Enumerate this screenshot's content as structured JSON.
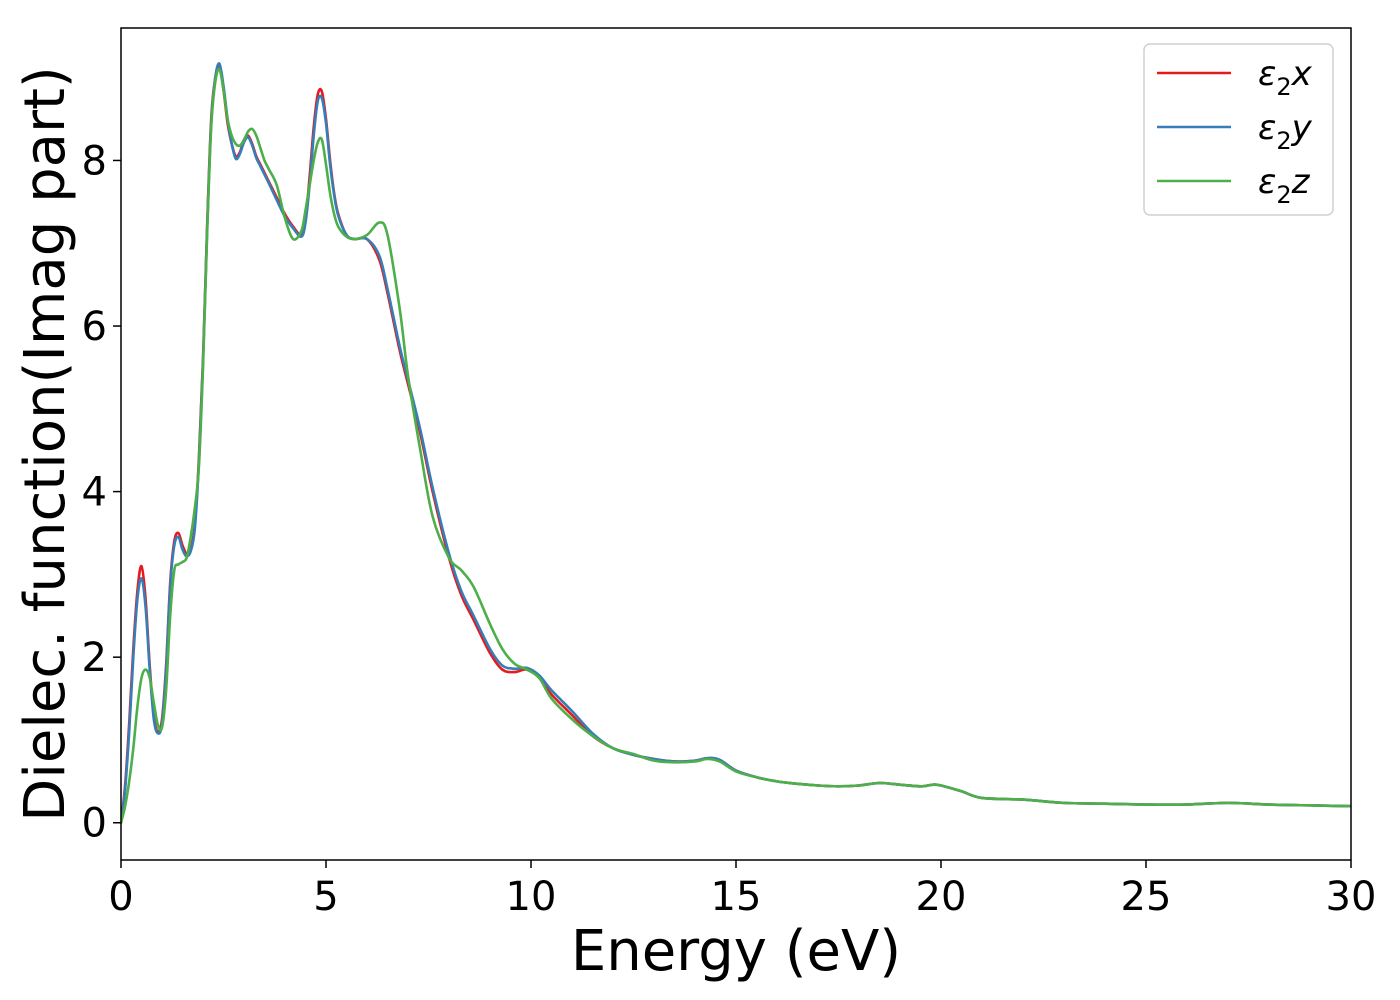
{
  "chart_data": {
    "type": "line",
    "title": "",
    "xlabel": "Energy (eV)",
    "ylabel": "Dielec. function(Imag part)",
    "xlim": [
      0,
      30
    ],
    "ylim": [
      -0.45,
      9.6
    ],
    "xticks": [
      0,
      5,
      10,
      15,
      20,
      25,
      30
    ],
    "yticks": [
      0,
      2,
      4,
      6,
      8
    ],
    "grid": false,
    "legend_position": "top-right",
    "series": [
      {
        "name": "ε2x",
        "legend": {
          "base": "ε",
          "sub": "2",
          "var": "x"
        },
        "color": "#e41a1c",
        "x": [
          0,
          0.1,
          0.2,
          0.3,
          0.4,
          0.5,
          0.6,
          0.7,
          0.8,
          0.9,
          1.0,
          1.1,
          1.2,
          1.3,
          1.4,
          1.5,
          1.6,
          1.7,
          1.8,
          1.9,
          2.0,
          2.1,
          2.2,
          2.3,
          2.4,
          2.5,
          2.6,
          2.7,
          2.8,
          2.9,
          3.0,
          3.1,
          3.2,
          3.3,
          3.4,
          3.5,
          3.6,
          3.8,
          4.0,
          4.2,
          4.4,
          4.5,
          4.6,
          4.7,
          4.8,
          4.9,
          5.0,
          5.1,
          5.2,
          5.3,
          5.5,
          5.7,
          6.0,
          6.3,
          6.5,
          6.8,
          7.0,
          7.3,
          7.6,
          8.0,
          8.3,
          8.6,
          9.0,
          9.3,
          9.6,
          9.9,
          10.2,
          10.5,
          11.0,
          11.5,
          12.0,
          12.5,
          13.0,
          13.5,
          14.0,
          14.3,
          14.6,
          15.0,
          15.5,
          16.0,
          16.5,
          17.0,
          17.5,
          18.0,
          18.5,
          19.0,
          19.5,
          19.8,
          20.0,
          20.5,
          21.0,
          22.0,
          23.0,
          24.0,
          25.0,
          26.0,
          27.0,
          28.0,
          29.0,
          30.0
        ],
        "y": [
          0.0,
          0.45,
          1.2,
          2.1,
          2.8,
          3.1,
          2.7,
          1.9,
          1.3,
          1.1,
          1.25,
          1.9,
          2.9,
          3.4,
          3.5,
          3.35,
          3.25,
          3.3,
          3.6,
          4.4,
          5.6,
          7.2,
          8.5,
          9.0,
          9.15,
          8.85,
          8.45,
          8.2,
          8.05,
          8.1,
          8.25,
          8.3,
          8.2,
          8.05,
          7.95,
          7.85,
          7.75,
          7.55,
          7.35,
          7.2,
          7.1,
          7.3,
          7.8,
          8.4,
          8.8,
          8.83,
          8.5,
          8.0,
          7.6,
          7.35,
          7.1,
          7.05,
          7.05,
          6.8,
          6.4,
          5.7,
          5.3,
          4.7,
          4.0,
          3.2,
          2.75,
          2.45,
          2.05,
          1.85,
          1.82,
          1.85,
          1.75,
          1.55,
          1.3,
          1.05,
          0.9,
          0.82,
          0.77,
          0.74,
          0.75,
          0.78,
          0.76,
          0.63,
          0.55,
          0.5,
          0.47,
          0.45,
          0.44,
          0.45,
          0.48,
          0.46,
          0.44,
          0.46,
          0.45,
          0.38,
          0.3,
          0.28,
          0.24,
          0.23,
          0.22,
          0.22,
          0.24,
          0.22,
          0.21,
          0.2
        ]
      },
      {
        "name": "ε2y",
        "legend": {
          "base": "ε",
          "sub": "2",
          "var": "y"
        },
        "color": "#377eb8",
        "x": [
          0,
          0.1,
          0.2,
          0.3,
          0.4,
          0.5,
          0.6,
          0.7,
          0.8,
          0.9,
          1.0,
          1.1,
          1.2,
          1.3,
          1.4,
          1.5,
          1.6,
          1.7,
          1.8,
          1.9,
          2.0,
          2.1,
          2.2,
          2.3,
          2.4,
          2.5,
          2.6,
          2.7,
          2.8,
          2.9,
          3.0,
          3.1,
          3.2,
          3.3,
          3.4,
          3.5,
          3.6,
          3.8,
          4.0,
          4.2,
          4.4,
          4.5,
          4.6,
          4.7,
          4.8,
          4.9,
          5.0,
          5.1,
          5.2,
          5.3,
          5.5,
          5.7,
          6.0,
          6.3,
          6.5,
          6.8,
          7.0,
          7.3,
          7.6,
          8.0,
          8.3,
          8.6,
          9.0,
          9.3,
          9.6,
          9.9,
          10.2,
          10.5,
          11.0,
          11.5,
          12.0,
          12.5,
          13.0,
          13.5,
          14.0,
          14.3,
          14.6,
          15.0,
          15.5,
          16.0,
          16.5,
          17.0,
          17.5,
          18.0,
          18.5,
          19.0,
          19.5,
          19.8,
          20.0,
          20.5,
          21.0,
          22.0,
          23.0,
          24.0,
          25.0,
          26.0,
          27.0,
          28.0,
          29.0,
          30.0
        ],
        "y": [
          0.0,
          0.4,
          1.1,
          2.0,
          2.7,
          2.95,
          2.6,
          1.85,
          1.25,
          1.08,
          1.2,
          1.85,
          2.85,
          3.35,
          3.45,
          3.3,
          3.22,
          3.28,
          3.55,
          4.35,
          5.55,
          7.15,
          8.45,
          9.0,
          9.17,
          8.9,
          8.5,
          8.2,
          8.02,
          8.08,
          8.22,
          8.28,
          8.18,
          8.03,
          7.93,
          7.83,
          7.73,
          7.52,
          7.32,
          7.18,
          7.08,
          7.25,
          7.7,
          8.3,
          8.72,
          8.75,
          8.45,
          7.95,
          7.58,
          7.33,
          7.1,
          7.05,
          7.05,
          6.85,
          6.45,
          5.75,
          5.35,
          4.75,
          4.05,
          3.25,
          2.8,
          2.5,
          2.1,
          1.9,
          1.86,
          1.87,
          1.78,
          1.6,
          1.35,
          1.08,
          0.9,
          0.82,
          0.77,
          0.74,
          0.75,
          0.78,
          0.76,
          0.63,
          0.55,
          0.5,
          0.47,
          0.45,
          0.44,
          0.45,
          0.48,
          0.46,
          0.44,
          0.46,
          0.45,
          0.38,
          0.3,
          0.28,
          0.24,
          0.23,
          0.22,
          0.22,
          0.24,
          0.22,
          0.21,
          0.2
        ]
      },
      {
        "name": "ε2z",
        "legend": {
          "base": "ε",
          "sub": "2",
          "var": "z"
        },
        "color": "#4daf4a",
        "x": [
          0,
          0.1,
          0.2,
          0.3,
          0.4,
          0.5,
          0.6,
          0.7,
          0.8,
          0.9,
          1.0,
          1.1,
          1.2,
          1.3,
          1.4,
          1.5,
          1.6,
          1.7,
          1.8,
          1.9,
          2.0,
          2.1,
          2.2,
          2.3,
          2.4,
          2.5,
          2.6,
          2.7,
          2.8,
          2.9,
          3.0,
          3.1,
          3.2,
          3.3,
          3.4,
          3.5,
          3.6,
          3.8,
          4.0,
          4.2,
          4.4,
          4.5,
          4.6,
          4.7,
          4.8,
          4.9,
          5.0,
          5.1,
          5.2,
          5.3,
          5.5,
          5.7,
          6.0,
          6.3,
          6.5,
          6.8,
          7.0,
          7.3,
          7.6,
          8.0,
          8.3,
          8.6,
          9.0,
          9.3,
          9.6,
          9.9,
          10.2,
          10.5,
          11.0,
          11.5,
          12.0,
          12.5,
          13.0,
          13.5,
          14.0,
          14.3,
          14.6,
          15.0,
          15.5,
          16.0,
          16.5,
          17.0,
          17.5,
          18.0,
          18.5,
          19.0,
          19.5,
          19.8,
          20.0,
          20.5,
          21.0,
          22.0,
          23.0,
          24.0,
          25.0,
          26.0,
          27.0,
          28.0,
          29.0,
          30.0
        ],
        "y": [
          0.0,
          0.2,
          0.5,
          0.9,
          1.4,
          1.75,
          1.85,
          1.75,
          1.45,
          1.18,
          1.15,
          1.6,
          2.5,
          3.05,
          3.12,
          3.15,
          3.2,
          3.45,
          3.8,
          4.3,
          5.5,
          7.1,
          8.4,
          8.95,
          9.1,
          8.85,
          8.5,
          8.3,
          8.2,
          8.18,
          8.25,
          8.35,
          8.38,
          8.3,
          8.15,
          8.0,
          7.9,
          7.7,
          7.3,
          7.05,
          7.15,
          7.4,
          7.7,
          8.0,
          8.22,
          8.25,
          7.95,
          7.6,
          7.35,
          7.2,
          7.08,
          7.05,
          7.1,
          7.25,
          7.1,
          6.2,
          5.4,
          4.5,
          3.7,
          3.2,
          3.05,
          2.85,
          2.4,
          2.1,
          1.92,
          1.85,
          1.75,
          1.5,
          1.25,
          1.05,
          0.9,
          0.83,
          0.75,
          0.73,
          0.74,
          0.77,
          0.74,
          0.62,
          0.55,
          0.5,
          0.47,
          0.45,
          0.44,
          0.45,
          0.48,
          0.46,
          0.44,
          0.46,
          0.45,
          0.38,
          0.3,
          0.28,
          0.24,
          0.23,
          0.22,
          0.22,
          0.24,
          0.22,
          0.21,
          0.2
        ]
      }
    ]
  }
}
